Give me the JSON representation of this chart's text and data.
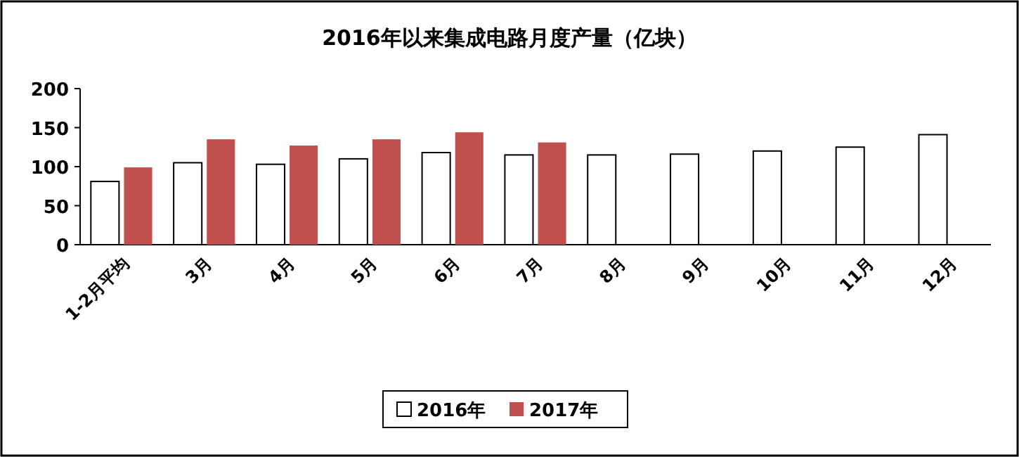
{
  "chart_data": {
    "type": "bar",
    "title": "2016年以来集成电路月度产量（亿块）",
    "categories": [
      "1-2月平均",
      "3月",
      "4月",
      "5月",
      "6月",
      "7月",
      "8月",
      "9月",
      "10月",
      "11月",
      "12月"
    ],
    "series": [
      {
        "name": "2016年",
        "color": "#ffffff",
        "values": [
          81,
          105,
          103,
          110,
          118,
          115,
          115,
          116,
          120,
          125,
          141
        ]
      },
      {
        "name": "2017年",
        "color": "#c0504d",
        "values": [
          99,
          135,
          127,
          135,
          144,
          131,
          null,
          null,
          null,
          null,
          null
        ]
      }
    ],
    "ylim": [
      0,
      200
    ],
    "yticks": [
      0,
      50,
      100,
      150,
      200
    ],
    "grid": false,
    "legend": "bottom"
  }
}
